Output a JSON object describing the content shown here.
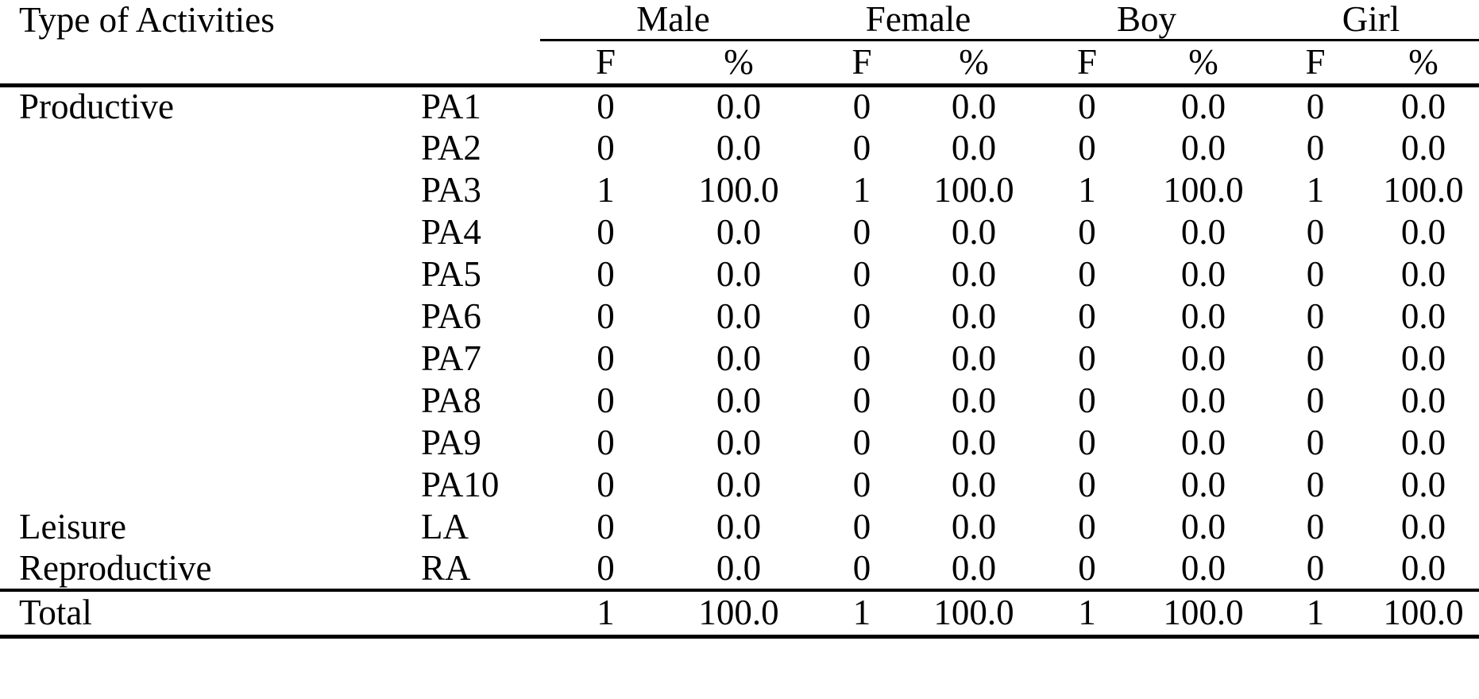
{
  "table": {
    "corner_header": "Type of Activities",
    "groups": [
      {
        "label": "Male"
      },
      {
        "label": "Female"
      },
      {
        "label": "Boy"
      },
      {
        "label": "Girl"
      }
    ],
    "sub_headers": [
      "F",
      "%"
    ],
    "rows": [
      {
        "category": "Productive",
        "code": "PA1",
        "values": [
          "0",
          "0.0",
          "0",
          "0.0",
          "0",
          "0.0",
          "0",
          "0.0"
        ]
      },
      {
        "category": "",
        "code": "PA2",
        "values": [
          "0",
          "0.0",
          "0",
          "0.0",
          "0",
          "0.0",
          "0",
          "0.0"
        ]
      },
      {
        "category": "",
        "code": "PA3",
        "values": [
          "1",
          "100.0",
          "1",
          "100.0",
          "1",
          "100.0",
          "1",
          "100.0"
        ]
      },
      {
        "category": "",
        "code": "PA4",
        "values": [
          "0",
          "0.0",
          "0",
          "0.0",
          "0",
          "0.0",
          "0",
          "0.0"
        ]
      },
      {
        "category": "",
        "code": "PA5",
        "values": [
          "0",
          "0.0",
          "0",
          "0.0",
          "0",
          "0.0",
          "0",
          "0.0"
        ]
      },
      {
        "category": "",
        "code": "PA6",
        "values": [
          "0",
          "0.0",
          "0",
          "0.0",
          "0",
          "0.0",
          "0",
          "0.0"
        ]
      },
      {
        "category": "",
        "code": "PA7",
        "values": [
          "0",
          "0.0",
          "0",
          "0.0",
          "0",
          "0.0",
          "0",
          "0.0"
        ]
      },
      {
        "category": "",
        "code": "PA8",
        "values": [
          "0",
          "0.0",
          "0",
          "0.0",
          "0",
          "0.0",
          "0",
          "0.0"
        ]
      },
      {
        "category": "",
        "code": "PA9",
        "values": [
          "0",
          "0.0",
          "0",
          "0.0",
          "0",
          "0.0",
          "0",
          "0.0"
        ]
      },
      {
        "category": "",
        "code": "PA10",
        "values": [
          "0",
          "0.0",
          "0",
          "0.0",
          "0",
          "0.0",
          "0",
          "0.0"
        ]
      },
      {
        "category": "Leisure",
        "code": "LA",
        "values": [
          "0",
          "0.0",
          "0",
          "0.0",
          "0",
          "0.0",
          "0",
          "0.0"
        ]
      },
      {
        "category": "Reproductive",
        "code": "RA",
        "values": [
          "0",
          "0.0",
          "0",
          "0.0",
          "0",
          "0.0",
          "0",
          "0.0"
        ]
      }
    ],
    "total": {
      "label": "Total",
      "values": [
        "1",
        "100.0",
        "1",
        "100.0",
        "1",
        "100.0",
        "1",
        "100.0"
      ]
    },
    "colors": {
      "text": "#000000",
      "background": "#ffffff",
      "rule": "#000000"
    }
  }
}
